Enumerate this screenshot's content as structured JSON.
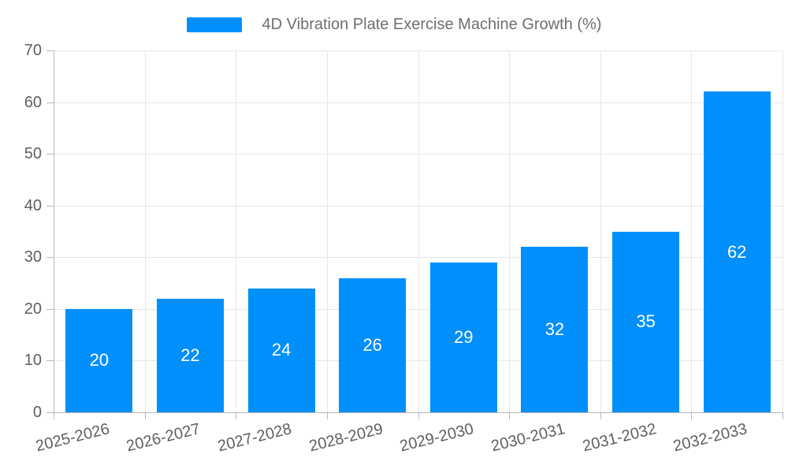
{
  "chart_data": {
    "type": "bar",
    "title": "4D Vibration Plate Exercise Machine Growth (%)",
    "legend": {
      "position": "top",
      "label": "4D Vibration Plate Exercise Machine Growth (%)"
    },
    "categories": [
      "2025-2026",
      "2026-2027",
      "2027-2028",
      "2028-2029",
      "2029-2030",
      "2030-2031",
      "2031-2032",
      "2032-2033"
    ],
    "values": [
      20,
      22,
      24,
      26,
      29,
      32,
      35,
      62
    ],
    "value_labels": [
      "20",
      "22",
      "24",
      "26",
      "29",
      "32",
      "35",
      "62"
    ],
    "xlabel": "",
    "ylabel": "",
    "ylim": [
      0,
      70
    ],
    "yticks": [
      0,
      10,
      20,
      30,
      40,
      50,
      60,
      70
    ],
    "ytick_labels": [
      "0",
      "10",
      "20",
      "30",
      "40",
      "50",
      "60",
      "70"
    ],
    "grid": "horizontal and vertical gridlines on",
    "x_label_rotation_deg": -14,
    "colors": {
      "bar": "#008FFB",
      "value_label": "#ffffff",
      "grid": "#e7e7e7",
      "axis_line": "#b6b6b6",
      "axis_label": "#5f5f5f",
      "legend_text": "#6e6e6e",
      "background": "#ffffff"
    }
  }
}
